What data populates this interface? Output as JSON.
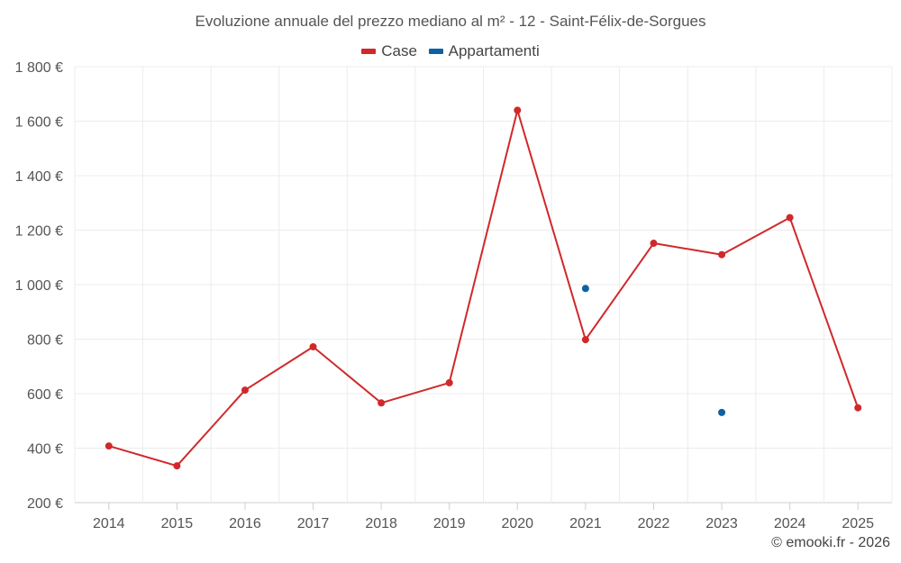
{
  "chart_data": {
    "type": "line",
    "title": "Evoluzione annuale del prezzo mediano al m² - 12 - Saint-Félix-de-Sorgues",
    "categories": [
      "2014",
      "2015",
      "2016",
      "2017",
      "2018",
      "2019",
      "2020",
      "2021",
      "2022",
      "2023",
      "2024",
      "2025"
    ],
    "series": [
      {
        "name": "Case",
        "color": "#d0282b",
        "values": [
          408,
          335,
          613,
          772,
          566,
          640,
          1640,
          798,
          1152,
          1110,
          1246,
          548
        ]
      },
      {
        "name": "Appartamenti",
        "color": "#0b62a4",
        "values": [
          null,
          null,
          null,
          null,
          null,
          null,
          null,
          986,
          null,
          531,
          null,
          null
        ]
      }
    ],
    "y_ticks": [
      200,
      400,
      600,
      800,
      1000,
      1200,
      1400,
      1600,
      1800
    ],
    "y_tick_labels": [
      "200 €",
      "400 €",
      "600 €",
      "800 €",
      "1 000 €",
      "1 200 €",
      "1 400 €",
      "1 600 €",
      "1 800 €"
    ],
    "ylim": [
      200,
      1800
    ],
    "xlabel": "",
    "ylabel": "",
    "legend_position": "top-center",
    "grid": true
  },
  "footer": "© emooki.fr - 2026"
}
